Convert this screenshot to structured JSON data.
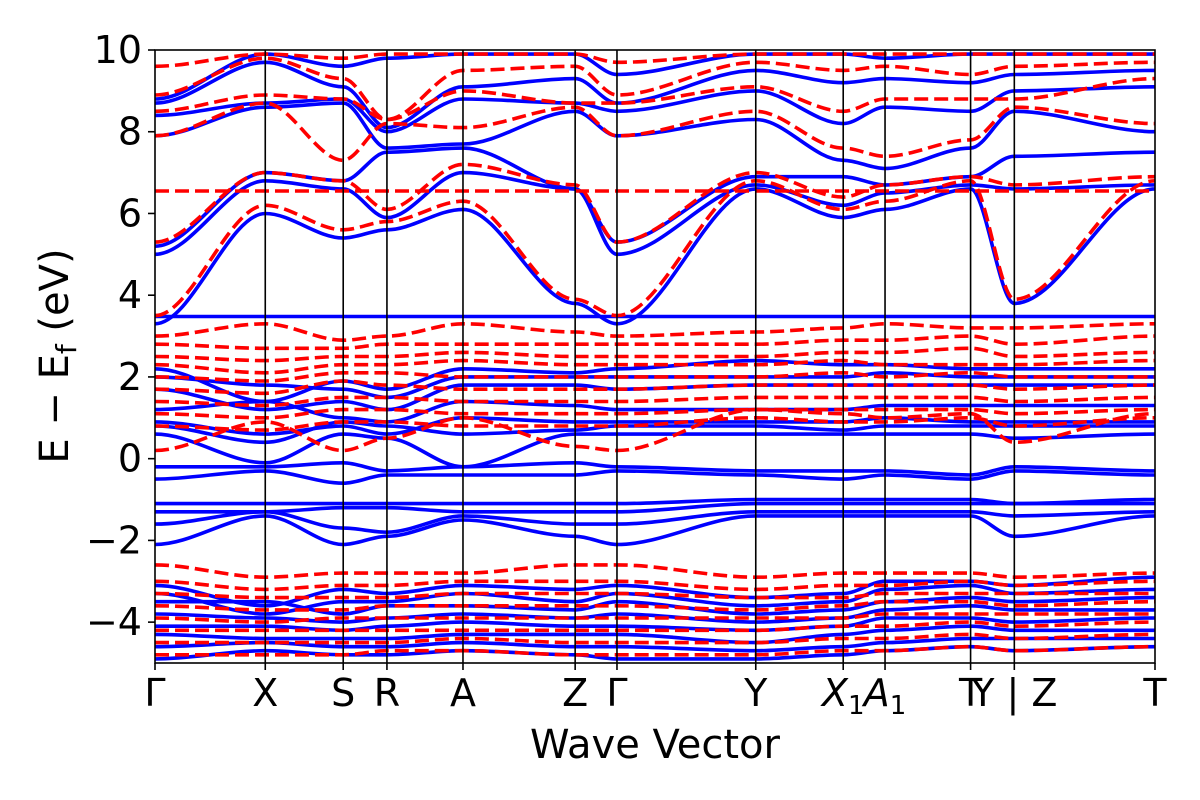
{
  "chart_data": {
    "type": "line",
    "xlabel": "Wave Vector",
    "ylabel": "E − E",
    "ylabel_sub": "f",
    "ylabel_unit": " (eV)",
    "ylim": [
      -5,
      10
    ],
    "y_ticks": [
      -4,
      -2,
      0,
      2,
      4,
      6,
      8,
      10
    ],
    "y_tick_labels": [
      "−4",
      "−2",
      "0",
      "2",
      "4",
      "6",
      "8",
      "10"
    ],
    "kpath_positions": [
      0,
      0.58,
      0.99,
      1.22,
      1.62,
      2.21,
      2.43,
      3.16,
      3.62,
      3.84,
      4.29,
      4.52,
      5.26
    ],
    "kpoints": [
      {
        "label": "Γ",
        "x": 0
      },
      {
        "label": "X",
        "x": 0.58
      },
      {
        "label": "S",
        "x": 0.99
      },
      {
        "label": "R",
        "x": 1.22
      },
      {
        "label": "A",
        "x": 1.62
      },
      {
        "label": "Z",
        "x": 2.21
      },
      {
        "label": "Γ",
        "x": 2.43
      },
      {
        "label": "Y",
        "x": 3.16
      },
      {
        "label": "X",
        "sub": "1",
        "italic": true,
        "x": 3.62
      },
      {
        "label": "A",
        "sub": "1",
        "italic": true,
        "x": 3.84
      },
      {
        "label": "T",
        "x": 4.29
      },
      {
        "label": "Y | Z",
        "x": 4.52
      },
      {
        "label": "T",
        "x": 5.26
      }
    ],
    "series": [
      {
        "color": "#0000ff",
        "style": "solid",
        "bands": [
          [
            3.48,
            3.48,
            3.48,
            3.48,
            3.48,
            3.48,
            3.48,
            3.48,
            3.48,
            3.48,
            3.48,
            3.48,
            3.48
          ],
          [
            3.3,
            6.0,
            5.4,
            5.6,
            6.1,
            3.8,
            3.3,
            6.6,
            5.9,
            6.1,
            6.6,
            3.8,
            6.6
          ],
          [
            5.0,
            6.8,
            6.6,
            5.9,
            7.0,
            6.6,
            5.0,
            6.7,
            6.2,
            6.5,
            6.7,
            6.6,
            6.7
          ],
          [
            5.2,
            7.0,
            6.8,
            7.5,
            7.6,
            6.6,
            5.3,
            6.9,
            6.9,
            6.7,
            6.9,
            7.4,
            7.5
          ],
          [
            7.9,
            8.6,
            8.7,
            7.6,
            7.7,
            8.5,
            7.9,
            8.3,
            7.3,
            7.1,
            7.6,
            8.5,
            8.0
          ],
          [
            8.4,
            8.7,
            8.8,
            8.0,
            8.8,
            8.7,
            8.5,
            9.0,
            8.2,
            8.6,
            8.5,
            9.0,
            9.1
          ],
          [
            8.7,
            9.7,
            9.1,
            8.1,
            9.1,
            9.3,
            8.7,
            9.5,
            9.2,
            9.3,
            9.2,
            9.4,
            9.5
          ],
          [
            8.8,
            9.9,
            9.6,
            9.8,
            9.9,
            9.9,
            9.4,
            9.9,
            9.9,
            9.8,
            9.9,
            9.9,
            9.9
          ],
          [
            2.2,
            1.4,
            1.9,
            1.7,
            2.2,
            2.1,
            2.2,
            2.4,
            2.3,
            2.3,
            2.2,
            2.2,
            2.2
          ],
          [
            2.0,
            1.8,
            1.7,
            1.5,
            2.0,
            2.0,
            2.0,
            2.0,
            2.0,
            2.1,
            2.0,
            2.0,
            2.0
          ],
          [
            1.7,
            1.2,
            1.4,
            1.2,
            1.8,
            1.8,
            1.7,
            1.8,
            1.8,
            1.8,
            1.8,
            1.8,
            1.8
          ],
          [
            1.2,
            1.4,
            1.0,
            0.9,
            1.4,
            1.3,
            1.2,
            1.2,
            1.2,
            1.3,
            1.3,
            1.3,
            1.3
          ],
          [
            0.9,
            0.6,
            0.8,
            0.6,
            1.0,
            0.9,
            0.9,
            0.9,
            0.9,
            1.0,
            0.9,
            0.9,
            0.9
          ],
          [
            0.8,
            0.4,
            0.9,
            0.8,
            0.6,
            0.7,
            0.8,
            0.8,
            0.7,
            0.8,
            0.8,
            0.8,
            0.8
          ],
          [
            0.6,
            -0.1,
            0.6,
            0.5,
            -0.2,
            0.6,
            0.6,
            0.6,
            0.6,
            0.6,
            0.6,
            0.5,
            0.6
          ],
          [
            -0.2,
            -0.2,
            -0.1,
            -0.3,
            -0.2,
            -0.1,
            -0.2,
            -0.3,
            -0.3,
            -0.3,
            -0.4,
            -0.2,
            -0.3
          ],
          [
            -0.5,
            -0.3,
            -0.6,
            -0.4,
            -0.4,
            -0.4,
            -0.3,
            -0.4,
            -0.5,
            -0.4,
            -0.5,
            -0.3,
            -0.4
          ],
          [
            -1.1,
            -1.1,
            -1.1,
            -1.1,
            -1.1,
            -1.1,
            -1.1,
            -1.0,
            -1.0,
            -1.0,
            -1.0,
            -1.1,
            -1.0
          ],
          [
            -1.3,
            -1.3,
            -1.2,
            -1.2,
            -1.3,
            -1.3,
            -1.3,
            -1.1,
            -1.1,
            -1.1,
            -1.1,
            -1.1,
            -1.1
          ],
          [
            -1.6,
            -1.3,
            -1.7,
            -1.8,
            -1.4,
            -1.6,
            -1.6,
            -1.3,
            -1.3,
            -1.3,
            -1.3,
            -1.4,
            -1.3
          ],
          [
            -2.1,
            -1.4,
            -2.1,
            -1.9,
            -1.5,
            -1.9,
            -2.1,
            -1.4,
            -1.4,
            -1.4,
            -1.4,
            -1.9,
            -1.4
          ],
          [
            -3.1,
            -3.6,
            -3.2,
            -3.3,
            -3.1,
            -3.2,
            -3.1,
            -3.4,
            -3.3,
            -3.0,
            -3.0,
            -3.1,
            -2.9
          ],
          [
            -3.3,
            -3.8,
            -3.5,
            -3.5,
            -3.3,
            -3.5,
            -3.3,
            -3.6,
            -3.5,
            -3.2,
            -3.1,
            -3.3,
            -3.2
          ],
          [
            -3.5,
            -3.5,
            -3.8,
            -3.6,
            -3.6,
            -3.7,
            -3.5,
            -3.8,
            -3.7,
            -3.5,
            -3.4,
            -3.5,
            -3.4
          ],
          [
            -3.8,
            -3.9,
            -4.0,
            -3.9,
            -3.8,
            -3.9,
            -3.8,
            -4.0,
            -3.9,
            -3.7,
            -3.6,
            -3.7,
            -3.7
          ],
          [
            -4.1,
            -4.1,
            -4.2,
            -4.1,
            -4.0,
            -4.1,
            -4.1,
            -4.2,
            -4.1,
            -3.9,
            -3.9,
            -4.0,
            -3.9
          ],
          [
            -4.3,
            -4.4,
            -4.4,
            -4.4,
            -4.3,
            -4.3,
            -4.3,
            -4.5,
            -4.3,
            -4.2,
            -4.1,
            -4.2,
            -4.2
          ],
          [
            -4.6,
            -4.5,
            -4.6,
            -4.6,
            -4.5,
            -4.6,
            -4.6,
            -4.7,
            -4.6,
            -4.5,
            -4.4,
            -4.4,
            -4.4
          ],
          [
            -4.9,
            -4.7,
            -4.8,
            -4.8,
            -4.7,
            -4.8,
            -4.9,
            -4.9,
            -4.8,
            -4.7,
            -4.6,
            -4.7,
            -4.6
          ]
        ]
      },
      {
        "color": "#ff0000",
        "style": "dashed",
        "bands": [
          [
            6.55,
            6.55,
            6.55,
            6.55,
            6.55,
            6.55,
            6.55,
            6.55,
            6.55,
            6.55,
            6.55,
            6.55,
            6.55
          ],
          [
            3.5,
            6.2,
            5.6,
            5.8,
            6.3,
            3.9,
            3.5,
            6.8,
            6.1,
            6.3,
            6.8,
            3.9,
            6.8
          ],
          [
            5.3,
            7.0,
            6.8,
            6.1,
            7.2,
            6.7,
            5.3,
            7.0,
            6.4,
            6.7,
            6.9,
            6.7,
            6.9
          ],
          [
            7.9,
            8.7,
            7.3,
            8.2,
            8.1,
            8.6,
            7.9,
            8.5,
            7.6,
            7.4,
            7.8,
            8.6,
            8.2
          ],
          [
            8.5,
            8.9,
            8.8,
            8.3,
            9.0,
            8.7,
            8.7,
            9.1,
            8.5,
            8.8,
            8.8,
            8.8,
            9.3
          ],
          [
            8.9,
            9.8,
            9.3,
            8.3,
            9.5,
            9.6,
            8.9,
            9.7,
            9.5,
            9.6,
            9.4,
            9.6,
            9.7
          ],
          [
            9.6,
            9.9,
            9.8,
            9.9,
            9.9,
            9.9,
            9.7,
            9.9,
            9.9,
            9.9,
            9.9,
            9.9,
            9.9
          ],
          [
            3.0,
            3.3,
            2.9,
            3.0,
            3.3,
            3.1,
            3.0,
            3.1,
            3.2,
            3.3,
            3.2,
            3.2,
            3.3
          ],
          [
            2.8,
            2.7,
            2.7,
            2.8,
            2.8,
            2.8,
            2.8,
            2.8,
            2.9,
            2.9,
            3.0,
            2.8,
            3.0
          ],
          [
            2.5,
            2.4,
            2.5,
            2.5,
            2.6,
            2.5,
            2.5,
            2.5,
            2.6,
            2.6,
            2.7,
            2.5,
            2.6
          ],
          [
            2.3,
            2.1,
            2.3,
            2.3,
            2.4,
            2.3,
            2.3,
            2.3,
            2.4,
            2.3,
            2.3,
            2.3,
            2.4
          ],
          [
            2.0,
            1.9,
            2.1,
            2.1,
            2.0,
            2.0,
            2.0,
            2.0,
            2.1,
            2.0,
            2.1,
            2.0,
            2.0
          ],
          [
            1.7,
            1.6,
            1.9,
            1.8,
            1.7,
            1.7,
            1.7,
            1.8,
            1.8,
            1.8,
            1.8,
            1.7,
            1.8
          ],
          [
            1.4,
            1.3,
            1.5,
            1.5,
            1.4,
            1.4,
            1.4,
            1.5,
            1.5,
            1.5,
            1.5,
            1.4,
            1.5
          ],
          [
            1.1,
            1.0,
            1.2,
            1.2,
            1.1,
            1.1,
            1.1,
            1.2,
            1.2,
            1.2,
            1.2,
            1.1,
            1.2
          ],
          [
            0.8,
            0.7,
            0.9,
            0.9,
            0.8,
            0.8,
            0.8,
            1.0,
            0.9,
            0.9,
            1.0,
            0.8,
            1.0
          ],
          [
            0.2,
            0.9,
            0.2,
            0.5,
            1.0,
            0.3,
            0.2,
            1.2,
            1.1,
            1.0,
            1.1,
            0.4,
            1.1
          ],
          [
            -2.6,
            -2.9,
            -2.8,
            -2.8,
            -2.8,
            -2.6,
            -2.6,
            -2.9,
            -2.8,
            -2.8,
            -2.8,
            -2.9,
            -2.8
          ],
          [
            -3.0,
            -3.2,
            -3.1,
            -3.1,
            -3.0,
            -3.0,
            -3.0,
            -3.2,
            -3.1,
            -3.1,
            -3.0,
            -3.1,
            -3.0
          ],
          [
            -3.3,
            -3.4,
            -3.4,
            -3.4,
            -3.3,
            -3.3,
            -3.3,
            -3.4,
            -3.4,
            -3.3,
            -3.3,
            -3.3,
            -3.3
          ],
          [
            -3.6,
            -3.7,
            -3.7,
            -3.6,
            -3.6,
            -3.6,
            -3.6,
            -3.7,
            -3.6,
            -3.5,
            -3.5,
            -3.6,
            -3.5
          ],
          [
            -3.9,
            -4.0,
            -3.9,
            -3.9,
            -3.9,
            -3.9,
            -3.9,
            -3.9,
            -3.9,
            -3.8,
            -3.8,
            -3.8,
            -3.8
          ],
          [
            -4.2,
            -4.2,
            -4.2,
            -4.2,
            -4.2,
            -4.2,
            -4.2,
            -4.2,
            -4.1,
            -4.1,
            -4.0,
            -4.1,
            -4.0
          ],
          [
            -4.5,
            -4.5,
            -4.5,
            -4.5,
            -4.4,
            -4.5,
            -4.5,
            -4.5,
            -4.4,
            -4.4,
            -4.3,
            -4.4,
            -4.3
          ],
          [
            -4.8,
            -4.8,
            -4.8,
            -4.7,
            -4.7,
            -4.8,
            -4.8,
            -4.8,
            -4.7,
            -4.7,
            -4.6,
            -4.7,
            -4.6
          ]
        ]
      }
    ]
  }
}
